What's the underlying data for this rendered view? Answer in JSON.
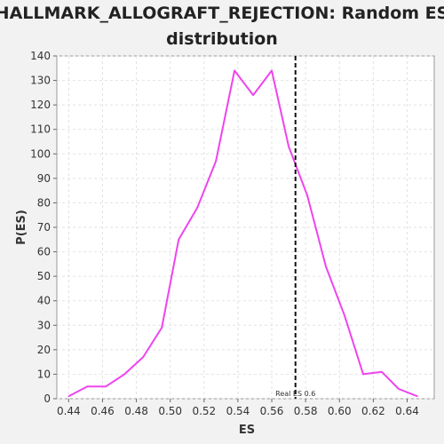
{
  "chart_data": {
    "type": "line",
    "title_line1": "HALLMARK_ALLOGRAFT_REJECTION: Random ES",
    "title_line2": "distribution",
    "xlabel": "ES",
    "ylabel": "P(ES)",
    "xlim": [
      0.433,
      0.656
    ],
    "ylim": [
      0,
      140
    ],
    "x_ticks": [
      0.44,
      0.46,
      0.48,
      0.5,
      0.52,
      0.54,
      0.56,
      0.58,
      0.6,
      0.62,
      0.64
    ],
    "x_tick_labels": [
      "0.44",
      "0.46",
      "0.48",
      "0.50",
      "0.52",
      "0.54",
      "0.56",
      "0.58",
      "0.60",
      "0.62",
      "0.64"
    ],
    "y_ticks": [
      0,
      10,
      20,
      30,
      40,
      50,
      60,
      70,
      80,
      90,
      100,
      110,
      120,
      130,
      140
    ],
    "grid": true,
    "series": [
      {
        "color": "#ee44ee",
        "x": [
          0.44,
          0.451,
          0.462,
          0.473,
          0.484,
          0.495,
          0.505,
          0.516,
          0.527,
          0.538,
          0.549,
          0.56,
          0.57,
          0.581,
          0.592,
          0.603,
          0.614,
          0.625,
          0.635,
          0.646
        ],
        "y": [
          1,
          5,
          5,
          10,
          17,
          29,
          65,
          78,
          97,
          134,
          124,
          134,
          103,
          83,
          54,
          34,
          10,
          11,
          4,
          1
        ]
      }
    ],
    "reference_line": {
      "x": 0.574,
      "label": "Real ES 0.6",
      "color": "#111111"
    }
  }
}
